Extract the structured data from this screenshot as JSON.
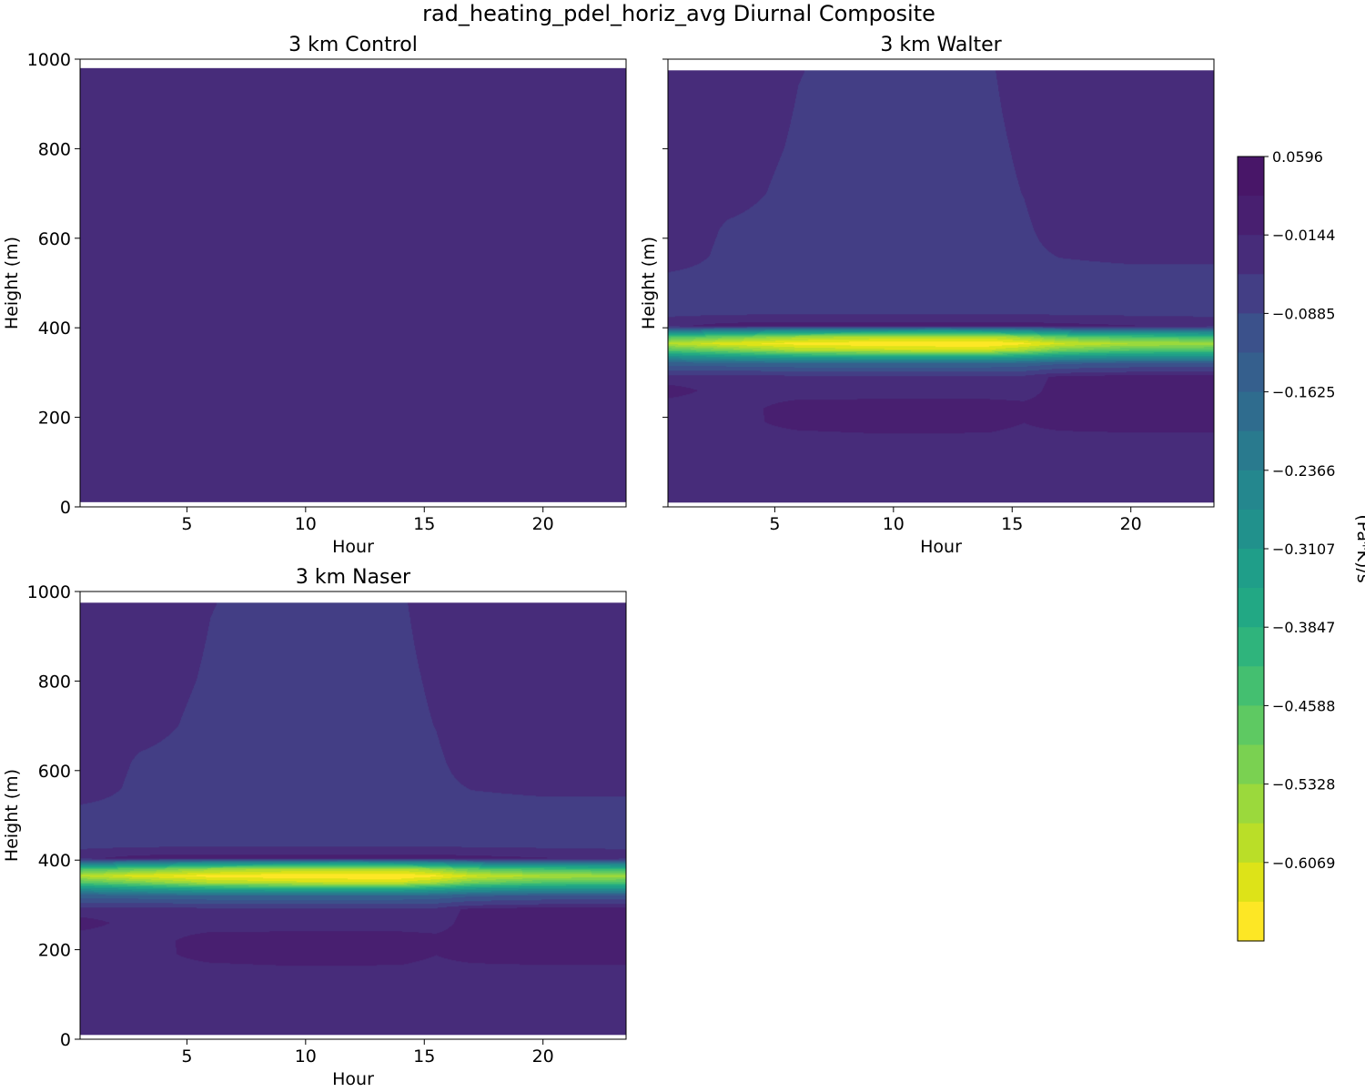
{
  "figure": {
    "title": "rad_heating_pdel_horiz_avg Diurnal Composite"
  },
  "colorbar": {
    "label": "(Pa*K)/s",
    "tick_labels": [
      "0.0596",
      "−0.0144",
      "−0.0885",
      "−0.1625",
      "−0.2366",
      "−0.3107",
      "−0.3847",
      "−0.4588",
      "−0.5328",
      "−0.6069"
    ],
    "levels": [
      0.0596,
      0.0226,
      -0.0144,
      -0.0514,
      -0.0885,
      -0.1255,
      -0.1625,
      -0.1996,
      -0.2366,
      -0.2736,
      -0.3107,
      -0.3477,
      -0.3847,
      -0.4217,
      -0.4588,
      -0.4958,
      -0.5328,
      -0.5699,
      -0.6069,
      -0.6439
    ],
    "colors": [
      "#481668",
      "#481f70",
      "#472c7a",
      "#433e85",
      "#3b518b",
      "#355f8d",
      "#2f6c8e",
      "#297a8e",
      "#24878e",
      "#21918c",
      "#1f9e89",
      "#22a884",
      "#2fb47c",
      "#44bf70",
      "#5ec962",
      "#7ad151",
      "#9bd93c",
      "#bade28",
      "#dde318",
      "#fde725"
    ],
    "colormap": "viridis_r"
  },
  "chart_data": [
    {
      "type": "heatmap",
      "title": "3 km Control",
      "xlabel": "Hour",
      "ylabel": "Height (m)",
      "x_ticks": [
        5,
        10,
        15,
        20
      ],
      "y_ticks": [
        0,
        200,
        400,
        600,
        800,
        1000
      ],
      "xlim": [
        0.5,
        23.5
      ],
      "ylim": [
        0,
        1000
      ],
      "data_ylim": [
        10,
        980
      ],
      "hours": [
        0.5,
        3,
        6,
        9,
        12,
        14,
        15.5,
        17,
        20,
        23.5
      ],
      "heights": [
        10,
        20,
        30,
        40,
        60,
        100,
        200,
        300,
        500,
        700,
        980
      ],
      "values": [
        [
          -0.035,
          -0.045,
          -0.045,
          -0.045,
          -0.045,
          -0.046,
          -0.04,
          -0.035,
          -0.03,
          -0.03
        ],
        [
          -0.03,
          -0.042,
          -0.042,
          -0.042,
          -0.042,
          -0.042,
          -0.036,
          -0.03,
          -0.028,
          -0.028
        ],
        [
          -0.025,
          -0.03,
          -0.036,
          -0.036,
          -0.036,
          -0.036,
          -0.03,
          -0.025,
          -0.025,
          -0.025
        ],
        [
          -0.025,
          -0.025,
          -0.028,
          -0.028,
          -0.028,
          -0.028,
          -0.025,
          -0.025,
          -0.025,
          -0.025
        ],
        [
          -0.025,
          -0.025,
          -0.025,
          -0.025,
          -0.025,
          -0.025,
          -0.025,
          -0.025,
          -0.025,
          -0.025
        ],
        [
          -0.025,
          -0.025,
          -0.025,
          -0.025,
          -0.025,
          -0.025,
          -0.025,
          -0.025,
          -0.025,
          -0.025
        ],
        [
          -0.025,
          -0.025,
          -0.025,
          -0.025,
          -0.025,
          -0.025,
          -0.025,
          -0.025,
          -0.025,
          -0.025
        ],
        [
          -0.025,
          -0.025,
          -0.025,
          -0.025,
          -0.025,
          -0.025,
          -0.025,
          -0.025,
          -0.025,
          -0.025
        ],
        [
          -0.025,
          -0.025,
          -0.025,
          -0.025,
          -0.025,
          -0.025,
          -0.025,
          -0.025,
          -0.025,
          -0.025
        ],
        [
          -0.025,
          -0.025,
          -0.025,
          -0.025,
          -0.025,
          -0.025,
          -0.025,
          -0.025,
          -0.025,
          -0.025
        ],
        [
          -0.025,
          -0.025,
          -0.025,
          -0.025,
          -0.025,
          -0.025,
          -0.025,
          -0.025,
          -0.025,
          -0.025
        ]
      ]
    },
    {
      "type": "heatmap",
      "title": "3 km Walter",
      "xlabel": "Hour",
      "ylabel": "Height (m)",
      "x_ticks": [
        5,
        10,
        15,
        20
      ],
      "y_ticks": [
        0,
        200,
        400,
        600,
        800,
        1000
      ],
      "y_tick_labels_shown": false,
      "xlim": [
        0.5,
        23.5
      ],
      "ylim": [
        0,
        1000
      ],
      "data_ylim": [
        10,
        975
      ],
      "hours": [
        0.5,
        3,
        6,
        9,
        12,
        14,
        15.5,
        17,
        20,
        23.5
      ],
      "heights": [
        10,
        100,
        150,
        190,
        220,
        260,
        290,
        300,
        320,
        335,
        350,
        365,
        380,
        395,
        405,
        420,
        440,
        500,
        560,
        620,
        700,
        800,
        975
      ],
      "values": [
        [
          -0.025,
          -0.025,
          -0.025,
          -0.025,
          -0.025,
          -0.025,
          -0.025,
          -0.025,
          -0.025,
          -0.025
        ],
        [
          -0.025,
          -0.025,
          -0.025,
          -0.025,
          -0.025,
          -0.025,
          -0.025,
          -0.025,
          -0.025,
          -0.025
        ],
        [
          -0.025,
          -0.025,
          -0.025,
          -0.02,
          -0.02,
          -0.02,
          -0.025,
          -0.025,
          -0.025,
          -0.025
        ],
        [
          -0.025,
          -0.025,
          0.002,
          0.005,
          0.005,
          0.003,
          -0.01,
          0.003,
          0.01,
          0.01
        ],
        [
          -0.03,
          -0.03,
          0.008,
          0.01,
          0.01,
          0.01,
          0.002,
          0.008,
          0.015,
          0.015
        ],
        [
          0.004,
          -0.025,
          -0.03,
          -0.03,
          -0.03,
          -0.03,
          -0.03,
          0.008,
          0.015,
          0.015
        ],
        [
          -0.03,
          -0.03,
          -0.035,
          -0.035,
          -0.035,
          -0.035,
          -0.035,
          0.0,
          0.01,
          0.01
        ],
        [
          -0.065,
          -0.065,
          -0.07,
          -0.07,
          -0.07,
          -0.07,
          -0.07,
          -0.05,
          -0.04,
          -0.04
        ],
        [
          -0.13,
          -0.14,
          -0.15,
          -0.15,
          -0.15,
          -0.15,
          -0.14,
          -0.12,
          -0.11,
          -0.11
        ],
        [
          -0.26,
          -0.29,
          -0.32,
          -0.33,
          -0.33,
          -0.33,
          -0.31,
          -0.28,
          -0.26,
          -0.26
        ],
        [
          -0.43,
          -0.48,
          -0.54,
          -0.56,
          -0.57,
          -0.57,
          -0.53,
          -0.47,
          -0.43,
          -0.42
        ],
        [
          -0.55,
          -0.6,
          -0.625,
          -0.635,
          -0.64,
          -0.64,
          -0.62,
          -0.58,
          -0.54,
          -0.53
        ],
        [
          -0.42,
          -0.46,
          -0.52,
          -0.54,
          -0.55,
          -0.55,
          -0.51,
          -0.45,
          -0.41,
          -0.4
        ],
        [
          -0.17,
          -0.2,
          -0.24,
          -0.25,
          -0.26,
          -0.25,
          -0.23,
          -0.19,
          -0.17,
          -0.16
        ],
        [
          -0.02,
          0.002,
          0.005,
          0.005,
          0.005,
          0.005,
          0.003,
          0.0,
          -0.01,
          -0.02
        ],
        [
          -0.04,
          -0.03,
          -0.025,
          -0.025,
          -0.025,
          -0.025,
          -0.025,
          -0.03,
          -0.035,
          -0.04
        ],
        [
          -0.065,
          -0.065,
          -0.065,
          -0.065,
          -0.065,
          -0.065,
          -0.065,
          -0.065,
          -0.065,
          -0.065
        ],
        [
          -0.06,
          -0.06,
          -0.06,
          -0.06,
          -0.06,
          -0.06,
          -0.06,
          -0.06,
          -0.06,
          -0.06
        ],
        [
          -0.025,
          -0.055,
          -0.06,
          -0.06,
          -0.06,
          -0.06,
          -0.055,
          -0.045,
          -0.04,
          -0.04
        ],
        [
          -0.02,
          -0.05,
          -0.058,
          -0.06,
          -0.06,
          -0.06,
          -0.052,
          -0.03,
          -0.02,
          -0.02
        ],
        [
          -0.015,
          -0.035,
          -0.055,
          -0.06,
          -0.06,
          -0.058,
          -0.045,
          -0.02,
          -0.015,
          -0.015
        ],
        [
          -0.015,
          -0.03,
          -0.05,
          -0.058,
          -0.058,
          -0.055,
          -0.04,
          -0.018,
          -0.015,
          -0.015
        ],
        [
          -0.015,
          -0.02,
          -0.045,
          -0.055,
          -0.055,
          -0.05,
          -0.03,
          -0.015,
          -0.015,
          -0.015
        ]
      ]
    },
    {
      "type": "heatmap",
      "title": "3 km Naser",
      "xlabel": "Hour",
      "ylabel": "Height (m)",
      "x_ticks": [
        5,
        10,
        15,
        20
      ],
      "y_ticks": [
        0,
        200,
        400,
        600,
        800,
        1000
      ],
      "xlim": [
        0.5,
        23.5
      ],
      "ylim": [
        0,
        1000
      ],
      "data_ylim": [
        10,
        975
      ],
      "hours": [
        0.5,
        3,
        6,
        9,
        12,
        14,
        15.5,
        17,
        20,
        23.5
      ],
      "heights": [
        10,
        100,
        150,
        190,
        220,
        260,
        290,
        300,
        320,
        335,
        350,
        365,
        380,
        395,
        405,
        420,
        440,
        500,
        560,
        620,
        700,
        800,
        975
      ],
      "values": [
        [
          -0.025,
          -0.025,
          -0.025,
          -0.025,
          -0.025,
          -0.025,
          -0.025,
          -0.025,
          -0.025,
          -0.025
        ],
        [
          -0.025,
          -0.025,
          -0.025,
          -0.025,
          -0.025,
          -0.025,
          -0.025,
          -0.025,
          -0.025,
          -0.025
        ],
        [
          -0.025,
          -0.025,
          -0.025,
          -0.02,
          -0.02,
          -0.02,
          -0.025,
          -0.025,
          -0.025,
          -0.025
        ],
        [
          -0.025,
          -0.025,
          0.002,
          0.005,
          0.005,
          0.003,
          -0.01,
          0.003,
          0.01,
          0.01
        ],
        [
          -0.03,
          -0.03,
          0.008,
          0.01,
          0.01,
          0.01,
          0.002,
          0.008,
          0.015,
          0.015
        ],
        [
          0.004,
          -0.025,
          -0.03,
          -0.03,
          -0.03,
          -0.03,
          -0.03,
          0.008,
          0.015,
          0.015
        ],
        [
          -0.03,
          -0.03,
          -0.035,
          -0.035,
          -0.035,
          -0.035,
          -0.035,
          0.0,
          0.01,
          0.01
        ],
        [
          -0.065,
          -0.065,
          -0.07,
          -0.07,
          -0.07,
          -0.07,
          -0.07,
          -0.05,
          -0.04,
          -0.04
        ],
        [
          -0.13,
          -0.14,
          -0.15,
          -0.15,
          -0.15,
          -0.15,
          -0.14,
          -0.12,
          -0.11,
          -0.11
        ],
        [
          -0.26,
          -0.29,
          -0.32,
          -0.33,
          -0.33,
          -0.33,
          -0.31,
          -0.28,
          -0.26,
          -0.26
        ],
        [
          -0.43,
          -0.48,
          -0.54,
          -0.56,
          -0.57,
          -0.57,
          -0.53,
          -0.47,
          -0.43,
          -0.42
        ],
        [
          -0.55,
          -0.6,
          -0.625,
          -0.635,
          -0.64,
          -0.64,
          -0.62,
          -0.58,
          -0.54,
          -0.53
        ],
        [
          -0.42,
          -0.46,
          -0.52,
          -0.54,
          -0.55,
          -0.55,
          -0.51,
          -0.45,
          -0.41,
          -0.4
        ],
        [
          -0.17,
          -0.2,
          -0.24,
          -0.25,
          -0.26,
          -0.25,
          -0.23,
          -0.19,
          -0.17,
          -0.16
        ],
        [
          -0.02,
          0.002,
          0.005,
          0.005,
          0.005,
          0.005,
          0.003,
          0.0,
          -0.01,
          -0.02
        ],
        [
          -0.04,
          -0.03,
          -0.025,
          -0.025,
          -0.025,
          -0.025,
          -0.025,
          -0.03,
          -0.035,
          -0.04
        ],
        [
          -0.065,
          -0.065,
          -0.065,
          -0.065,
          -0.065,
          -0.065,
          -0.065,
          -0.065,
          -0.065,
          -0.065
        ],
        [
          -0.06,
          -0.06,
          -0.06,
          -0.06,
          -0.06,
          -0.06,
          -0.06,
          -0.06,
          -0.06,
          -0.06
        ],
        [
          -0.025,
          -0.055,
          -0.06,
          -0.06,
          -0.06,
          -0.06,
          -0.055,
          -0.045,
          -0.04,
          -0.04
        ],
        [
          -0.02,
          -0.05,
          -0.058,
          -0.06,
          -0.06,
          -0.06,
          -0.052,
          -0.03,
          -0.02,
          -0.02
        ],
        [
          -0.015,
          -0.035,
          -0.055,
          -0.06,
          -0.06,
          -0.058,
          -0.045,
          -0.02,
          -0.015,
          -0.015
        ],
        [
          -0.015,
          -0.03,
          -0.05,
          -0.058,
          -0.058,
          -0.055,
          -0.04,
          -0.018,
          -0.015,
          -0.015
        ],
        [
          -0.015,
          -0.02,
          -0.045,
          -0.055,
          -0.055,
          -0.05,
          -0.03,
          -0.015,
          -0.015,
          -0.015
        ]
      ]
    }
  ]
}
